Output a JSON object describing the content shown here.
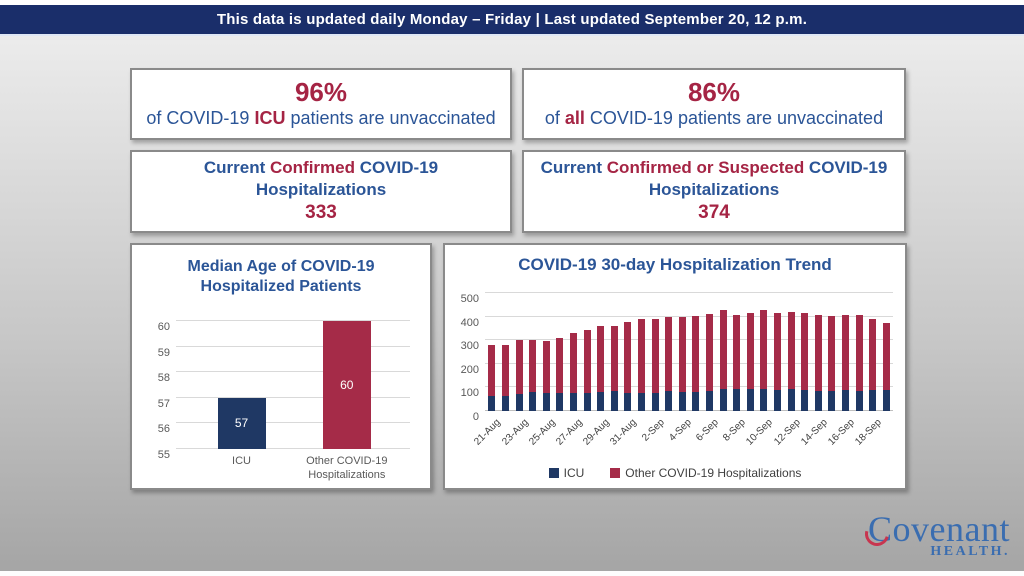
{
  "banner": {
    "text": "This data is updated daily Monday – Friday | Last updated September 20, 12 p.m."
  },
  "stat_boxes": {
    "icu_unvaccinated": {
      "pct": "96%",
      "pre": "of COVID-19 ",
      "hl": "ICU",
      "post": " patients are unvaccinated"
    },
    "all_unvaccinated": {
      "pct": "86%",
      "pre": "of ",
      "hl": "all",
      "post": " COVID-19 patients are unvaccinated"
    },
    "confirmed": {
      "pre": "Current ",
      "hl": "Confirmed",
      "post": " COVID-19",
      "line2": "Hospitalizations",
      "value": "333"
    },
    "confirmed_suspected": {
      "pre": "Current ",
      "hl": "Confirmed or Suspected",
      "post": " COVID-19",
      "line2": "Hospitalizations",
      "value": "374"
    }
  },
  "colors": {
    "banner_navy": "#1a2e6a",
    "text_blue": "#2b5597",
    "text_red": "#a52444",
    "bar_navy": "#1f3864",
    "bar_crimson": "#a52b48",
    "axis_gray": "#595959"
  },
  "chart_data": [
    {
      "type": "bar",
      "title": "Median Age of COVID-19 Hospitalized Patients",
      "categories": [
        "ICU",
        "Other COVID-19 Hospitalizations"
      ],
      "values": [
        57,
        60
      ],
      "value_labels": [
        "57",
        "60"
      ],
      "bar_colors": [
        "#1f3864",
        "#a52b48"
      ],
      "ylim": [
        55,
        60
      ],
      "yticks": [
        55,
        56,
        57,
        58,
        59,
        60
      ],
      "grid": true,
      "legend": "none"
    },
    {
      "type": "stacked-bar",
      "title": "COVID-19 30-day Hospitalization Trend",
      "categories": [
        "21-Aug",
        "22-Aug",
        "23-Aug",
        "24-Aug",
        "25-Aug",
        "26-Aug",
        "27-Aug",
        "28-Aug",
        "29-Aug",
        "30-Aug",
        "31-Aug",
        "1-Sep",
        "2-Sep",
        "3-Sep",
        "4-Sep",
        "5-Sep",
        "6-Sep",
        "7-Sep",
        "8-Sep",
        "9-Sep",
        "10-Sep",
        "11-Sep",
        "12-Sep",
        "13-Sep",
        "14-Sep",
        "15-Sep",
        "16-Sep",
        "17-Sep",
        "18-Sep",
        "19-Sep"
      ],
      "x_labels_every": 2,
      "series": [
        {
          "name": "ICU",
          "color": "#1f3864",
          "values": [
            62,
            63,
            70,
            80,
            78,
            77,
            78,
            77,
            80,
            83,
            78,
            78,
            78,
            85,
            82,
            80,
            85,
            92,
            93,
            95,
            92,
            90,
            92,
            88,
            85,
            85,
            88,
            85,
            90,
            88
          ]
        },
        {
          "name": "Other COVID-19 Hospitalizations",
          "color": "#a52b48",
          "values": [
            218,
            217,
            230,
            222,
            220,
            231,
            254,
            266,
            280,
            279,
            300,
            310,
            314,
            315,
            315,
            323,
            327,
            336,
            312,
            320,
            335,
            325,
            326,
            327,
            323,
            318,
            317,
            320,
            302,
            287
          ]
        }
      ],
      "totals": [
        280,
        280,
        300,
        302,
        298,
        308,
        332,
        343,
        360,
        362,
        378,
        388,
        392,
        400,
        397,
        403,
        412,
        428,
        405,
        415,
        427,
        415,
        418,
        415,
        408,
        403,
        405,
        405,
        392,
        375
      ],
      "ylim": [
        0,
        500
      ],
      "yticks": [
        0,
        100,
        200,
        300,
        400,
        500
      ],
      "grid": true,
      "legend_position": "bottom"
    }
  ],
  "logo": {
    "word": "Covenant",
    "sub": "HEALTH."
  }
}
